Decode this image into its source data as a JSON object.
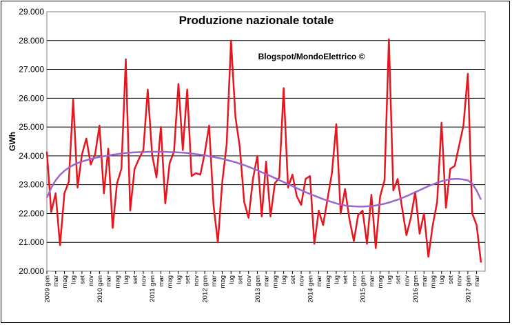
{
  "chart_data": {
    "type": "line",
    "title": "Produzione nazionale totale",
    "annotation": "Blogspot/MondoElettrico ©",
    "ylabel": "GWh",
    "xlabel": "",
    "ylim": [
      20000,
      29000
    ],
    "yticks": [
      "20.000",
      "21.000",
      "22.000",
      "23.000",
      "24.000",
      "25.000",
      "26.000",
      "27.000",
      "28.000",
      "29.000"
    ],
    "grid": "horizontal",
    "x": [
      "2009 gen",
      "feb",
      "mar",
      "apr",
      "mag",
      "giu",
      "lug",
      "ago",
      "set",
      "ott",
      "nov",
      "dic",
      "2010 gen",
      "feb",
      "mar",
      "apr",
      "mag",
      "giu",
      "lug",
      "ago",
      "set",
      "ott",
      "nov",
      "dic",
      "2011 gen",
      "feb",
      "mar",
      "apr",
      "mag",
      "giu",
      "lug",
      "ago",
      "set",
      "ott",
      "nov",
      "dic",
      "2012 gen",
      "feb",
      "mar",
      "apr",
      "mag",
      "giu",
      "lug",
      "ago",
      "set",
      "ott",
      "nov",
      "dic",
      "2013 gen",
      "feb",
      "mar",
      "apr",
      "mag",
      "giu",
      "lug",
      "ago",
      "set",
      "ott",
      "nov",
      "dic",
      "2014 gen",
      "feb",
      "mar",
      "apr",
      "mag",
      "giu",
      "lug",
      "ago",
      "set",
      "ott",
      "nov",
      "dic",
      "2015 gen",
      "feb",
      "mar",
      "apr",
      "mag",
      "giu",
      "lug",
      "ago",
      "set",
      "ott",
      "nov",
      "dic",
      "2016 gen",
      "feb",
      "mar",
      "apr",
      "mag",
      "giu",
      "lug",
      "ago",
      "set",
      "ott",
      "nov",
      "dic",
      "2017 gen",
      "feb",
      "mar",
      "apr"
    ],
    "xtick_labels": [
      "2009 gen",
      "mar",
      "mag",
      "lug",
      "set",
      "nov",
      "2010 gen",
      "mar",
      "mag",
      "lug",
      "set",
      "nov",
      "2011 gen",
      "mar",
      "mag",
      "lug",
      "set",
      "nov",
      "2012 gen",
      "mar",
      "mag",
      "lug",
      "set",
      "nov",
      "2013 gen",
      "mar",
      "mag",
      "lug",
      "set",
      "nov",
      "2014 gen",
      "mar",
      "mag",
      "lug",
      "set",
      "nov",
      "2015 gen",
      "mar",
      "mag",
      "lug",
      "set",
      "nov",
      "2016 gen",
      "mar",
      "mag",
      "lug",
      "set",
      "nov",
      "2017 gen",
      "mar"
    ],
    "series": [
      {
        "color": "#e8141e",
        "values": [
          24150,
          22050,
          22700,
          20900,
          22700,
          23100,
          25950,
          22900,
          24050,
          24600,
          23700,
          24050,
          25050,
          22700,
          24250,
          21500,
          23050,
          23550,
          27350,
          22100,
          23550,
          23900,
          24200,
          26300,
          24050,
          23250,
          25000,
          22350,
          23750,
          24150,
          26500,
          24200,
          26300,
          23300,
          23400,
          23350,
          24100,
          25050,
          22300,
          21000,
          23100,
          24400,
          28000,
          25350,
          24300,
          22400,
          21850,
          23200,
          24000,
          21900,
          23800,
          21900,
          23050,
          23250,
          26350,
          22900,
          23350,
          22600,
          22300,
          23200,
          23300,
          20950,
          22100,
          21600,
          22500,
          23400,
          25100,
          22000,
          22850,
          21800,
          21050,
          21950,
          22100,
          20950,
          22650,
          20800,
          22600,
          23150,
          28050,
          22800,
          23200,
          22200,
          21250,
          21850,
          22750,
          21300,
          22000,
          20500,
          21600,
          22400,
          25150,
          22200,
          23550,
          23650,
          24350,
          25050,
          26850,
          22000,
          21600,
          20300
        ]
      },
      {
        "color": "#9966cc",
        "values": [
          22550,
          22890,
          23150,
          23340,
          23480,
          23590,
          23680,
          23750,
          23800,
          23850,
          23890,
          23930,
          23960,
          23990,
          24010,
          24040,
          24060,
          24080,
          24100,
          24110,
          24120,
          24130,
          24130,
          24140,
          24140,
          24140,
          24140,
          24140,
          24130,
          24130,
          24120,
          24110,
          24100,
          24080,
          24060,
          24040,
          24020,
          23990,
          23960,
          23930,
          23900,
          23860,
          23820,
          23780,
          23730,
          23680,
          23620,
          23560,
          23500,
          23430,
          23370,
          23300,
          23230,
          23160,
          23090,
          23020,
          22950,
          22880,
          22810,
          22740,
          22680,
          22620,
          22560,
          22500,
          22450,
          22400,
          22350,
          22310,
          22280,
          22260,
          22250,
          22240,
          22240,
          22250,
          22260,
          22280,
          22310,
          22340,
          22380,
          22430,
          22480,
          22540,
          22600,
          22670,
          22740,
          22810,
          22880,
          22950,
          23010,
          23070,
          23120,
          23160,
          23190,
          23200,
          23200,
          23180,
          23150,
          23040,
          22800,
          22480
        ]
      }
    ]
  }
}
